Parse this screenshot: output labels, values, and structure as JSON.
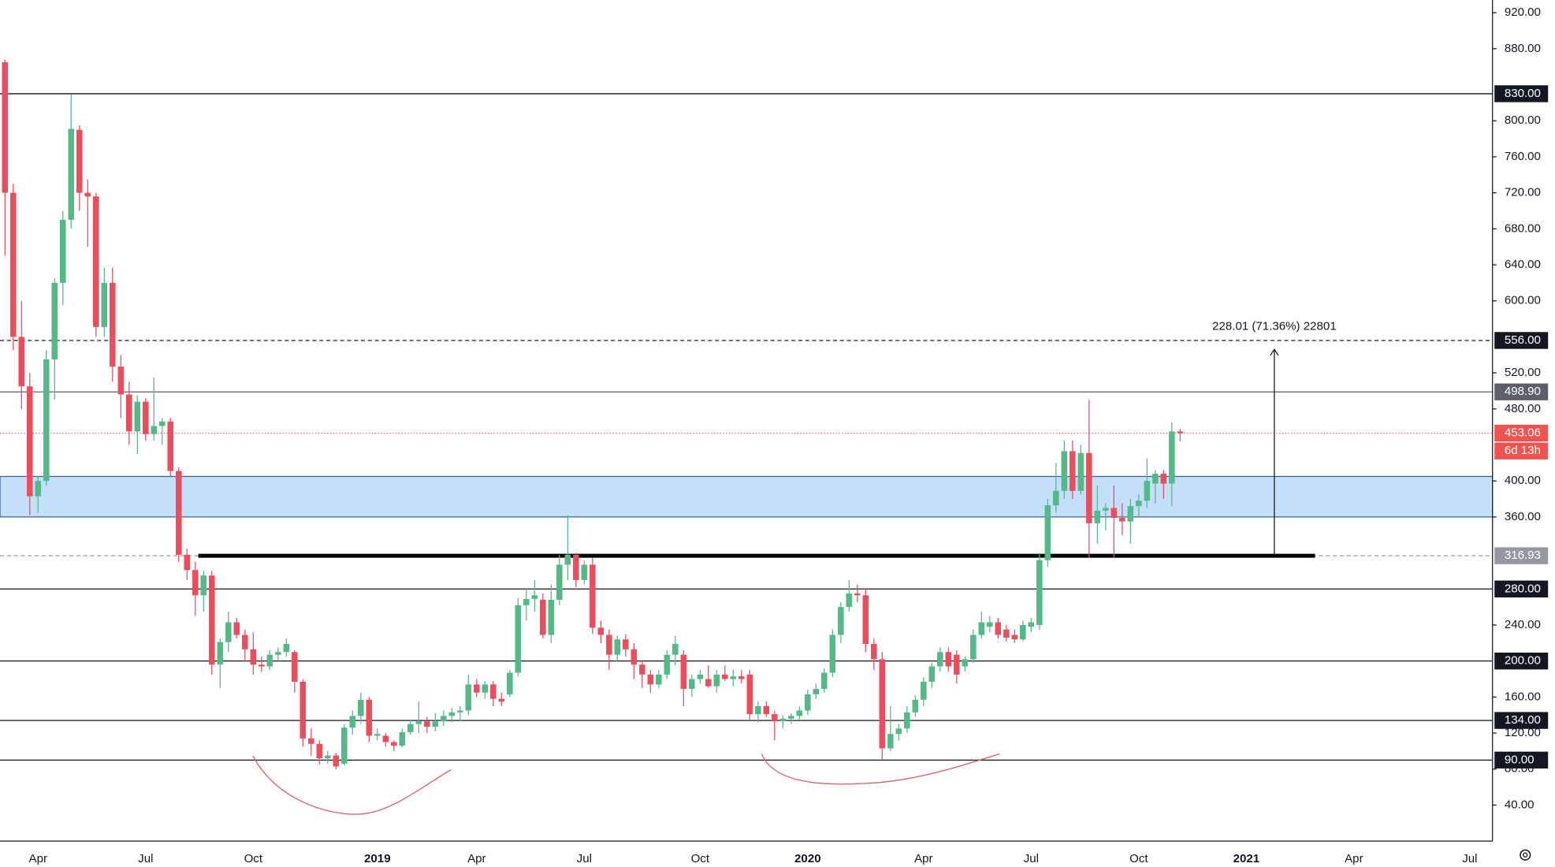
{
  "chart_data": {
    "type": "candlestick",
    "categories": [
      null,
      null,
      null,
      null,
      "Apr",
      null,
      null,
      null,
      null,
      null,
      null,
      null,
      null,
      null,
      null,
      null,
      null,
      "Jul",
      null,
      null,
      null,
      null,
      null,
      null,
      null,
      null,
      null,
      null,
      null,
      null,
      "Oct",
      null,
      null,
      null,
      null,
      null,
      null,
      null,
      null,
      null,
      null,
      null,
      null,
      null,
      null,
      "2019",
      null,
      null,
      null,
      null,
      null,
      null,
      null,
      null,
      null,
      null,
      null,
      "Apr",
      null,
      null,
      null,
      null,
      null,
      null,
      null,
      null,
      null,
      null,
      null,
      null,
      "Jul",
      null,
      null,
      null,
      null,
      null,
      null,
      null,
      null,
      null,
      null,
      null,
      null,
      null,
      "Oct",
      null,
      null,
      null,
      null,
      null,
      null,
      null,
      null,
      null,
      null,
      null,
      null,
      "2020",
      null,
      null,
      null,
      null,
      null,
      null,
      null,
      null,
      null,
      null,
      null,
      null,
      null,
      "Apr",
      null,
      null,
      null,
      null,
      null,
      null,
      null,
      null,
      null,
      null,
      null,
      null,
      "Jul",
      null,
      null,
      null,
      null,
      null,
      null,
      null,
      null,
      null,
      null,
      null,
      null,
      "Oct",
      null,
      null,
      null,
      null,
      null,
      null,
      null,
      null,
      null,
      null,
      null,
      null,
      "2021",
      null,
      null,
      null,
      null,
      null,
      null,
      null,
      null,
      null,
      null,
      null,
      null,
      "Apr",
      null,
      null,
      null,
      null,
      null,
      null,
      null,
      null,
      null,
      null,
      null,
      null,
      null,
      "Jul",
      null,
      null
    ],
    "open": [
      865,
      720,
      560,
      505,
      383,
      400,
      535,
      620,
      690,
      790,
      720,
      716,
      571,
      620,
      527,
      496,
      455,
      488,
      452,
      461,
      466,
      411,
      318,
      301,
      273,
      295,
      196,
      221,
      243,
      229,
      213,
      196,
      194,
      207,
      210,
      210,
      177,
      114,
      108,
      92,
      95,
      86,
      126,
      139,
      157,
      117,
      117,
      110,
      106,
      121,
      130,
      133,
      127,
      133,
      139,
      143,
      145,
      174,
      165,
      174,
      158,
      163,
      187,
      262,
      269,
      268,
      229,
      268,
      307,
      318,
      290,
      307,
      237,
      229,
      207,
      224,
      213,
      196,
      185,
      174,
      185,
      207,
      207,
      169,
      180,
      180,
      172,
      185,
      180,
      183,
      185,
      141,
      150,
      141,
      133,
      136,
      139,
      145,
      163,
      169,
      187,
      229,
      260,
      275,
      273,
      219,
      202,
      103,
      119,
      125,
      143,
      157,
      177,
      194,
      210,
      207,
      194,
      202,
      229,
      238,
      243,
      235,
      229,
      224,
      238,
      240,
      312,
      373,
      389,
      433,
      389,
      431,
      353,
      367,
      370,
      359,
      355,
      372,
      378,
      397,
      408,
      397,
      455,
      null,
      null,
      null,
      null,
      null,
      null,
      null,
      null,
      null,
      null,
      null,
      null,
      null,
      null,
      null,
      null,
      null,
      null,
      null,
      null,
      null,
      null,
      null,
      null,
      null,
      null,
      null,
      null,
      null,
      null,
      null,
      null,
      null,
      null,
      null,
      null,
      null
    ],
    "high": [
      868,
      730,
      600,
      520,
      405,
      545,
      625,
      700,
      829,
      795,
      735,
      720,
      637,
      637,
      540,
      510,
      495,
      492,
      515,
      470,
      470,
      415,
      325,
      310,
      300,
      300,
      225,
      255,
      248,
      235,
      232,
      205,
      212,
      215,
      225,
      212,
      180,
      125,
      112,
      100,
      98,
      130,
      145,
      165,
      160,
      125,
      120,
      112,
      125,
      135,
      155,
      138,
      142,
      145,
      148,
      150,
      185,
      180,
      178,
      178,
      165,
      190,
      270,
      280,
      290,
      275,
      285,
      318,
      362,
      320,
      312,
      315,
      245,
      235,
      228,
      230,
      220,
      200,
      190,
      190,
      212,
      228,
      212,
      185,
      190,
      195,
      190,
      195,
      190,
      190,
      190,
      155,
      155,
      145,
      140,
      142,
      150,
      168,
      175,
      192,
      235,
      265,
      290,
      285,
      280,
      225,
      210,
      150,
      130,
      150,
      162,
      182,
      198,
      215,
      215,
      212,
      205,
      235,
      255,
      250,
      248,
      240,
      235,
      245,
      248,
      320,
      380,
      420,
      445,
      445,
      440,
      490,
      395,
      375,
      395,
      375,
      380,
      385,
      425,
      412,
      412,
      465,
      458,
      null,
      null,
      null,
      null,
      null,
      null,
      null,
      null,
      null,
      null,
      null,
      null,
      null,
      null,
      null,
      null,
      null,
      null,
      null,
      null,
      null,
      null,
      null,
      null,
      null,
      null,
      null,
      null,
      null,
      null,
      null,
      null,
      null,
      null,
      null,
      null,
      null
    ],
    "low": [
      650,
      545,
      480,
      362,
      365,
      395,
      490,
      595,
      680,
      700,
      660,
      560,
      560,
      510,
      470,
      440,
      430,
      445,
      445,
      440,
      405,
      310,
      290,
      250,
      255,
      185,
      170,
      210,
      225,
      200,
      185,
      188,
      190,
      200,
      205,
      165,
      105,
      95,
      85,
      86,
      80,
      84,
      118,
      130,
      110,
      112,
      105,
      100,
      104,
      118,
      120,
      120,
      122,
      128,
      132,
      133,
      140,
      160,
      158,
      150,
      150,
      160,
      183,
      245,
      255,
      225,
      220,
      262,
      290,
      282,
      285,
      230,
      220,
      190,
      200,
      205,
      180,
      170,
      165,
      170,
      180,
      195,
      150,
      160,
      175,
      170,
      165,
      178,
      172,
      175,
      135,
      132,
      138,
      112,
      125,
      130,
      135,
      140,
      158,
      165,
      182,
      220,
      255,
      265,
      210,
      190,
      90,
      100,
      112,
      120,
      138,
      150,
      170,
      188,
      188,
      175,
      188,
      198,
      225,
      232,
      225,
      222,
      220,
      222,
      232,
      235,
      305,
      365,
      380,
      380,
      385,
      315,
      330,
      345,
      315,
      340,
      330,
      360,
      370,
      375,
      380,
      372,
      444,
      null,
      null,
      null,
      null,
      null,
      null,
      null,
      null,
      null,
      null,
      null,
      null,
      null,
      null,
      null,
      null,
      null,
      null,
      null,
      null,
      null,
      null,
      null,
      null,
      null,
      null,
      null,
      null,
      null,
      null,
      null,
      null,
      null,
      null,
      null,
      null,
      null
    ],
    "close": [
      720,
      560,
      505,
      383,
      400,
      535,
      620,
      690,
      791,
      720,
      716,
      571,
      620,
      527,
      496,
      455,
      488,
      452,
      461,
      466,
      411,
      318,
      301,
      273,
      295,
      196,
      221,
      243,
      229,
      213,
      196,
      194,
      207,
      210,
      219,
      177,
      114,
      108,
      92,
      95,
      83,
      126,
      139,
      157,
      117,
      119,
      110,
      106,
      121,
      130,
      133,
      127,
      133,
      139,
      143,
      145,
      174,
      165,
      174,
      158,
      155,
      187,
      262,
      269,
      273,
      229,
      268,
      307,
      318,
      290,
      307,
      237,
      229,
      207,
      224,
      213,
      196,
      185,
      174,
      185,
      207,
      219,
      169,
      180,
      185,
      172,
      185,
      180,
      183,
      180,
      141,
      150,
      141,
      133,
      136,
      139,
      145,
      163,
      169,
      187,
      229,
      260,
      275,
      273,
      219,
      202,
      103,
      119,
      125,
      143,
      157,
      177,
      194,
      210,
      194,
      185,
      202,
      229,
      243,
      243,
      229,
      226,
      224,
      240,
      243,
      312,
      373,
      389,
      433,
      389,
      431,
      353,
      367,
      370,
      359,
      355,
      372,
      378,
      400,
      408,
      397,
      455,
      453.06,
      null,
      null,
      null,
      null,
      null,
      null,
      null,
      null,
      null,
      null,
      null,
      null,
      null,
      null,
      null,
      null,
      null,
      null,
      null,
      null,
      null,
      null,
      null,
      null,
      null,
      null,
      null,
      null,
      null,
      null,
      null,
      null,
      null,
      null,
      null,
      null,
      null
    ],
    "up_color": "#53b987",
    "down_color": "#eb4d5c",
    "ylim": [
      0,
      934
    ],
    "yticks": [
      {
        "value": 40,
        "label": "40.00"
      },
      {
        "value": 80,
        "label": "80.00"
      },
      {
        "value": 120,
        "label": "120.00"
      },
      {
        "value": 160,
        "label": "160.00"
      },
      {
        "value": 240,
        "label": "240.00"
      },
      {
        "value": 360,
        "label": "360.00"
      },
      {
        "value": 400,
        "label": "400.00"
      },
      {
        "value": 480,
        "label": "480.00"
      },
      {
        "value": 520,
        "label": "520.00"
      },
      {
        "value": 600,
        "label": "600.00"
      },
      {
        "value": 640,
        "label": "640.00"
      },
      {
        "value": 680,
        "label": "680.00"
      },
      {
        "value": 720,
        "label": "720.00"
      },
      {
        "value": 760,
        "label": "760.00"
      },
      {
        "value": 800,
        "label": "800.00"
      },
      {
        "value": 880,
        "label": "880.00"
      },
      {
        "value": 920,
        "label": "920.00"
      }
    ],
    "levels": [
      {
        "value": 830,
        "label": "830.00",
        "color": "#131722",
        "dash": false
      },
      {
        "value": 556,
        "label": "556.00",
        "color": "#131722",
        "dash": true
      },
      {
        "value": 498.9,
        "label": "498.90",
        "color": "#5d606b",
        "dash": false
      },
      {
        "value": 316.93,
        "label": "316.93",
        "color": "#9598a1",
        "dash": true
      },
      {
        "value": 280,
        "label": "280.00",
        "color": "#131722",
        "dash": false
      },
      {
        "value": 200,
        "label": "200.00",
        "color": "#131722",
        "dash": false
      },
      {
        "value": 134,
        "label": "134.00",
        "color": "#131722",
        "dash": false
      },
      {
        "value": 90,
        "label": "90.00",
        "color": "#131722",
        "dash": false
      }
    ],
    "zone": {
      "low": 360,
      "high": 405,
      "color": "#c3dffa",
      "border": "#3a5fa8"
    },
    "last_price": {
      "value": 453.06,
      "label": "453.06",
      "countdown": "6d 13h",
      "color": "#ef5350"
    },
    "target_label": "228.01 (71.36%) 22801"
  }
}
